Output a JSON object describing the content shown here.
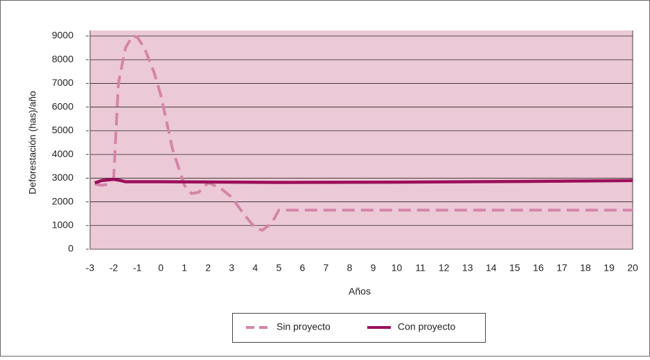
{
  "chart_data": {
    "type": "line",
    "xlabel": "Años",
    "ylabel": "Deforestación (has)/año",
    "xlim": [
      -3,
      20
    ],
    "ylim": [
      0,
      9000
    ],
    "xticks": [
      -3,
      -2,
      -1,
      0,
      1,
      2,
      3,
      4,
      5,
      6,
      7,
      8,
      9,
      10,
      11,
      12,
      13,
      14,
      15,
      16,
      17,
      18,
      19,
      20
    ],
    "yticks": [
      0,
      1000,
      2000,
      3000,
      4000,
      5000,
      6000,
      7000,
      8000,
      9000
    ],
    "grid": true,
    "legend": "bottom",
    "background": "#ecc9d6",
    "series": [
      {
        "name": "Sin proyecto",
        "color": "#d484a8",
        "dashed": true,
        "x": [
          -2.8,
          -2.5,
          -2.2,
          -2,
          -1.8,
          -1.5,
          -1.2,
          -1,
          -0.7,
          -0.3,
          0,
          0.5,
          1,
          1.3,
          1.6,
          2,
          2.5,
          3,
          3.5,
          4,
          4.3,
          4.7,
          5,
          6,
          8,
          10,
          12,
          14,
          16,
          18,
          20
        ],
        "values": [
          2750,
          2700,
          2750,
          3000,
          7000,
          8500,
          9000,
          8950,
          8500,
          7500,
          6500,
          4200,
          2700,
          2350,
          2400,
          2800,
          2600,
          2200,
          1500,
          900,
          800,
          1100,
          1650,
          1650,
          1650,
          1650,
          1650,
          1650,
          1650,
          1650,
          1650
        ]
      },
      {
        "name": "Con proyecto",
        "color": "#9b0f5a",
        "dashed": false,
        "x": [
          -2.8,
          -2.5,
          -2,
          -1.7,
          -1.5,
          0,
          5,
          10,
          15,
          20
        ],
        "values": [
          2800,
          2900,
          2950,
          2900,
          2850,
          2850,
          2820,
          2830,
          2860,
          2900
        ]
      }
    ]
  }
}
